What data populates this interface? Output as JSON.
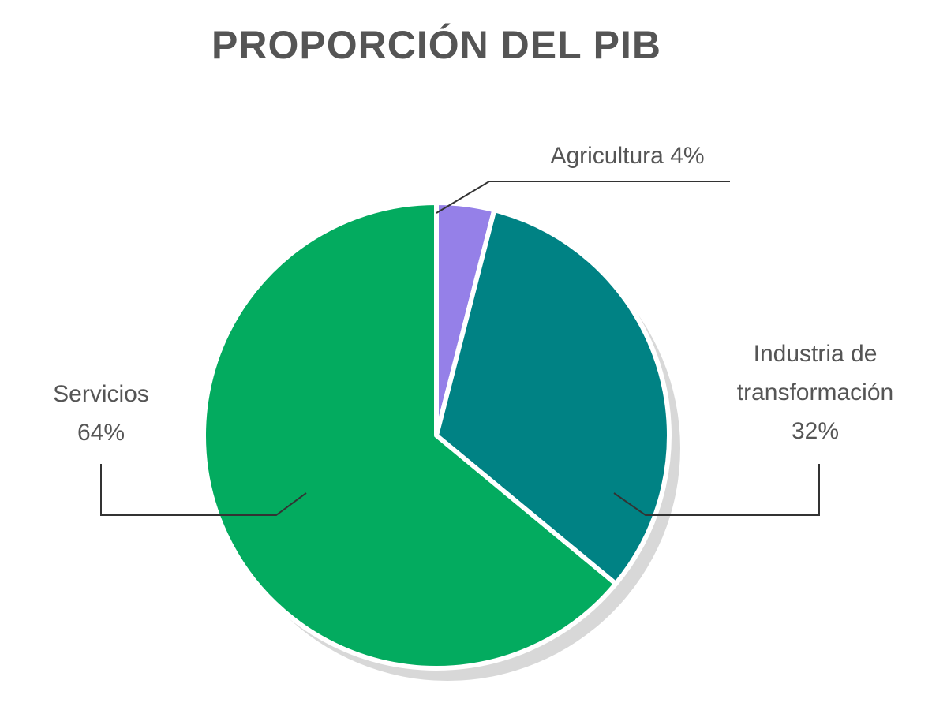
{
  "chart_data": {
    "type": "pie",
    "title": "PROPORCIÓN DEL PIB",
    "categories": [
      "Agricultura",
      "Industria de transformación",
      "Servicios"
    ],
    "values": [
      4,
      32,
      64
    ],
    "value_labels": [
      "4%",
      "32%",
      "64%"
    ],
    "colors": [
      "#9580e8",
      "#008284",
      "#03ab5f"
    ]
  }
}
